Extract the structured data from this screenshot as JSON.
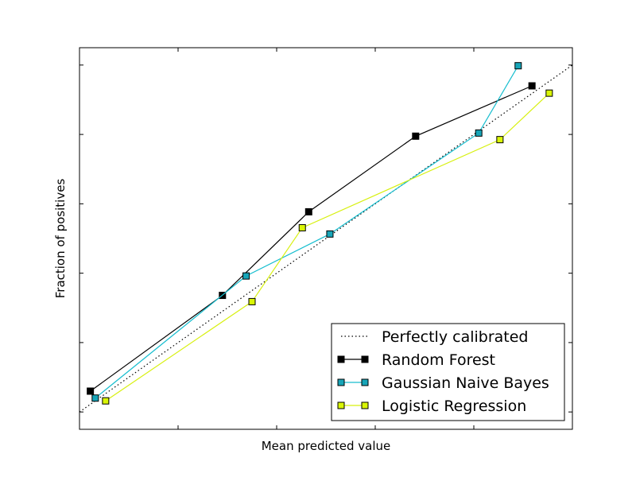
{
  "chart_data": {
    "type": "line",
    "title": "",
    "xlabel": "Mean predicted value",
    "ylabel": "Fraction of positives",
    "xlim": [
      0,
      1
    ],
    "ylim": [
      -0.05,
      1.05
    ],
    "x_ticks": [
      0,
      0.2,
      0.4,
      0.6,
      0.8,
      1.0
    ],
    "y_ticks": [
      0,
      0.2,
      0.4,
      0.6,
      0.8,
      1.0
    ],
    "tick_labels_visible": false,
    "grid": false,
    "legend": {
      "position": "bottom-right",
      "entries": [
        "Perfectly calibrated",
        "Random Forest",
        "Gaussian Naive Bayes",
        "Logistic Regression"
      ]
    },
    "reference_line": {
      "name": "Perfectly calibrated",
      "x": [
        0,
        1
      ],
      "y": [
        0,
        1
      ],
      "style": "dotted",
      "color": "#000000"
    },
    "series": [
      {
        "name": "Random Forest",
        "color": "#000000",
        "marker_face": "#000000",
        "x": [
          0.022,
          0.29,
          0.465,
          0.682,
          0.918
        ],
        "y": [
          0.06,
          0.336,
          0.577,
          0.795,
          0.94
        ]
      },
      {
        "name": "Gaussian Naive Bayes",
        "color": "#17becf",
        "marker_face": "#17a5b8",
        "x": [
          0.032,
          0.338,
          0.508,
          0.81,
          0.89
        ],
        "y": [
          0.04,
          0.392,
          0.513,
          0.804,
          0.998
        ]
      },
      {
        "name": "Logistic Regression",
        "color": "#d7f00f",
        "marker_face": "#d9f505",
        "x": [
          0.053,
          0.35,
          0.452,
          0.853,
          0.953
        ],
        "y": [
          0.032,
          0.318,
          0.531,
          0.785,
          0.919
        ]
      }
    ]
  }
}
